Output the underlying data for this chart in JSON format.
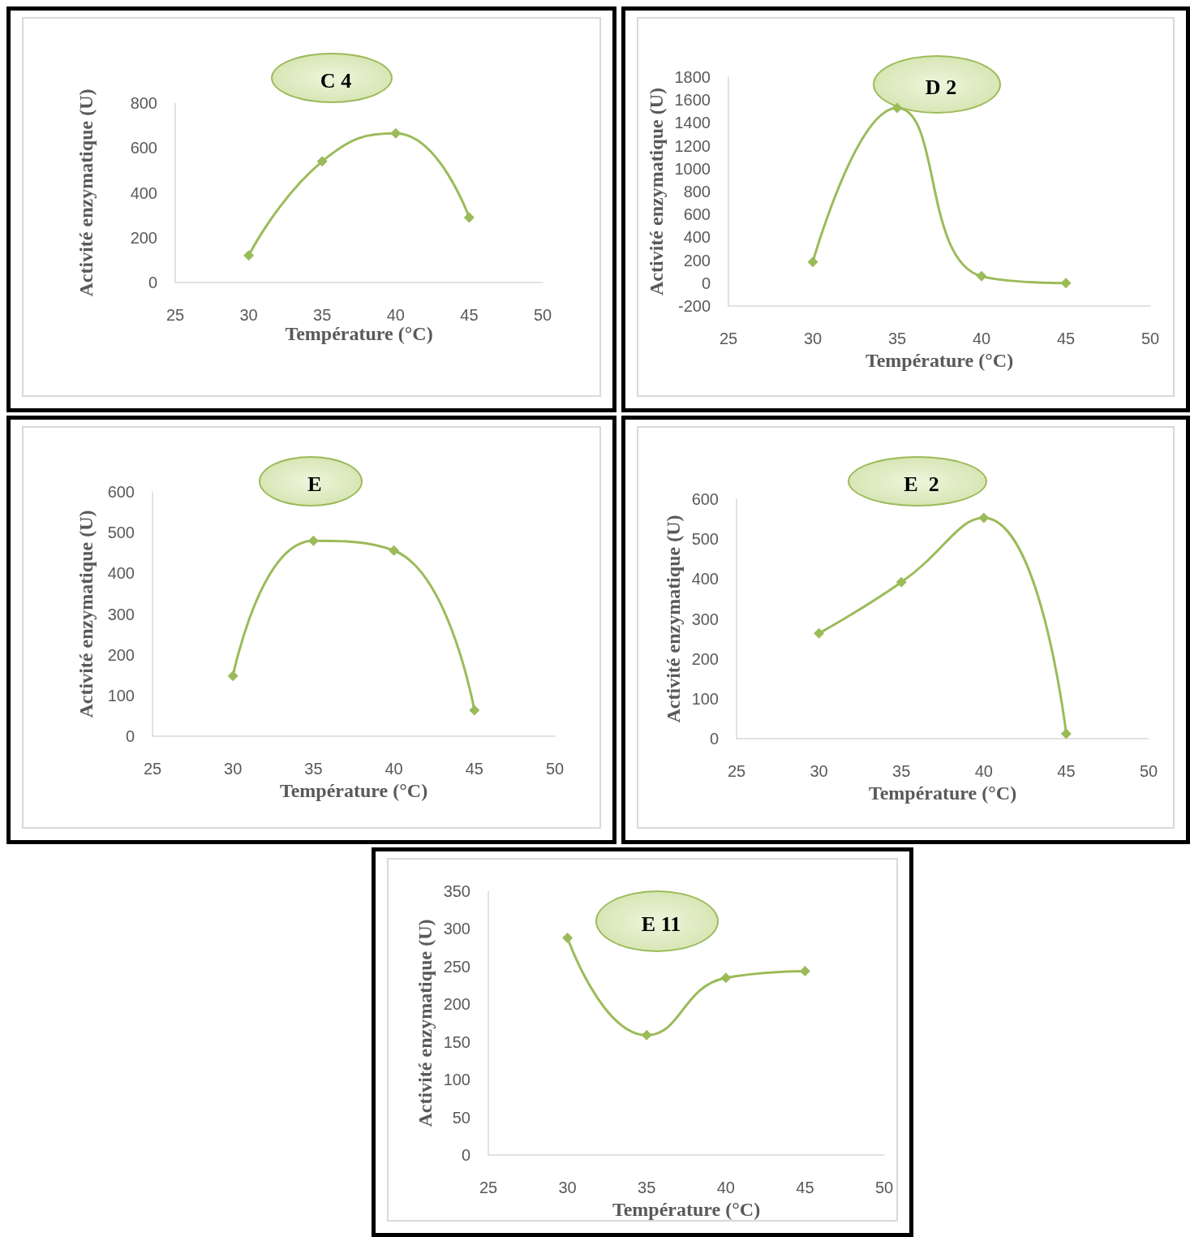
{
  "chart_data": [
    {
      "type": "line",
      "title": "C 4",
      "xlabel": "Température (°C)",
      "ylabel": "Activité enzymatique (U)",
      "x": [
        30,
        35,
        40,
        45
      ],
      "marker": "diamond",
      "xlim": [
        25,
        50
      ],
      "xticks": [
        25,
        30,
        35,
        40,
        45,
        50
      ],
      "ylim": [
        0,
        800
      ],
      "yticks": [
        0,
        200,
        400,
        600,
        800
      ],
      "series": [
        {
          "color": "#9bbb59",
          "values": [
            120,
            540,
            665,
            290
          ]
        }
      ]
    },
    {
      "type": "line",
      "title": "D 2",
      "xlabel": "Température (°C)",
      "ylabel": "Activité enzymatique (U)",
      "x": [
        30,
        35,
        40,
        45
      ],
      "marker": "diamond",
      "xlim": [
        25,
        50
      ],
      "xticks": [
        25,
        30,
        35,
        40,
        45,
        50
      ],
      "ylim": [
        -200,
        1800
      ],
      "yticks": [
        -200,
        0,
        200,
        400,
        600,
        800,
        1000,
        1200,
        1400,
        1600,
        1800
      ],
      "series": [
        {
          "color": "#9bbb59",
          "values": [
            185,
            1530,
            60,
            0
          ]
        }
      ]
    },
    {
      "type": "line",
      "title": "E",
      "xlabel": "Température (°C)",
      "ylabel": "Activité enzymatique (U)",
      "x": [
        30,
        35,
        40,
        45
      ],
      "marker": "diamond",
      "xlim": [
        25,
        50
      ],
      "xticks": [
        25,
        30,
        35,
        40,
        45,
        50
      ],
      "ylim": [
        0,
        600
      ],
      "yticks": [
        0,
        100,
        200,
        300,
        400,
        500,
        600
      ],
      "series": [
        {
          "color": "#9bbb59",
          "values": [
            148,
            480,
            456,
            64
          ]
        }
      ]
    },
    {
      "type": "line",
      "title": "E  2",
      "xlabel": "Température (°C)",
      "ylabel": "Activité enzymatique (U)",
      "x": [
        30,
        35,
        40,
        45
      ],
      "marker": "diamond",
      "xlim": [
        25,
        50
      ],
      "xticks": [
        25,
        30,
        35,
        40,
        45,
        50
      ],
      "ylim": [
        0,
        600
      ],
      "yticks": [
        0,
        100,
        200,
        300,
        400,
        500,
        600
      ],
      "series": [
        {
          "color": "#9bbb59",
          "values": [
            264,
            392,
            553,
            12
          ]
        }
      ]
    },
    {
      "type": "line",
      "title": "E 11",
      "xlabel": "Température (°C)",
      "ylabel": "Activité enzymatique (U)",
      "x": [
        30,
        35,
        40,
        45
      ],
      "marker": "diamond",
      "xlim": [
        25,
        50
      ],
      "xticks": [
        25,
        30,
        35,
        40,
        45,
        50
      ],
      "ylim": [
        0,
        350
      ],
      "yticks": [
        0,
        50,
        100,
        150,
        200,
        250,
        300,
        350
      ],
      "series": [
        {
          "color": "#9bbb59",
          "values": [
            288,
            159,
            235,
            244
          ]
        }
      ]
    }
  ]
}
